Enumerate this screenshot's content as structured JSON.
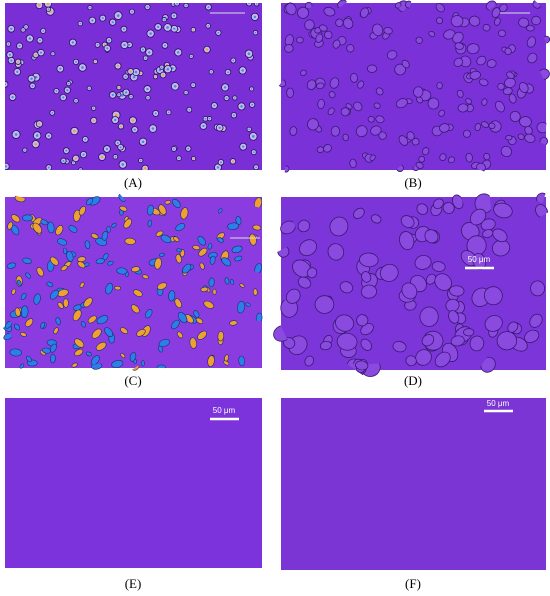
{
  "panels": [
    {
      "label": "(A)"
    },
    {
      "label": "(B)"
    },
    {
      "label": "(C)"
    },
    {
      "label": "(D)",
      "scale_bar": "50 μm"
    },
    {
      "label": "(E)",
      "scale_bar": "50 μm"
    },
    {
      "label": "(F)",
      "scale_bar": "50 μm"
    }
  ]
}
